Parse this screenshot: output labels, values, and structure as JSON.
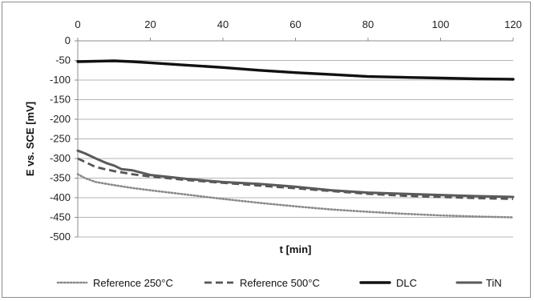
{
  "chart_data": {
    "type": "line",
    "title": "",
    "xlabel": "t [min]",
    "ylabel": "E vs. SCE [mV]",
    "xlim": [
      0,
      120
    ],
    "ylim": [
      -500,
      0
    ],
    "x_ticks": [
      0,
      20,
      40,
      60,
      80,
      100,
      120
    ],
    "y_ticks": [
      0,
      -50,
      -100,
      -150,
      -200,
      -250,
      -300,
      -350,
      -400,
      -450,
      -500
    ],
    "x_tick_labels": [
      "0",
      "20",
      "40",
      "60",
      "80",
      "100",
      "120"
    ],
    "y_tick_labels": [
      "0",
      "-50",
      "-100",
      "-150",
      "-200",
      "-250",
      "-300",
      "-350",
      "-400",
      "-450",
      "-500"
    ],
    "x_axis_position": "top",
    "grid": "horizontal",
    "legend_position": "bottom",
    "series": [
      {
        "name": "Reference 250°C",
        "style": "dotted",
        "color": "#8a8a8a",
        "x": [
          0,
          2,
          5,
          10,
          15,
          20,
          30,
          40,
          50,
          60,
          70,
          80,
          90,
          100,
          110,
          120
        ],
        "y": [
          -340,
          -350,
          -360,
          -368,
          -375,
          -381,
          -392,
          -403,
          -413,
          -422,
          -430,
          -436,
          -441,
          -445,
          -448,
          -450
        ]
      },
      {
        "name": "Reference 500°C",
        "style": "dashed",
        "color": "#555555",
        "x": [
          0,
          5,
          10,
          15,
          20,
          30,
          40,
          50,
          60,
          70,
          80,
          90,
          100,
          110,
          120
        ],
        "y": [
          -300,
          -322,
          -332,
          -340,
          -346,
          -355,
          -362,
          -369,
          -376,
          -383,
          -390,
          -395,
          -398,
          -401,
          -403
        ]
      },
      {
        "name": "DLC",
        "style": "solid",
        "color": "#111111",
        "x": [
          0,
          5,
          10,
          15,
          20,
          30,
          40,
          50,
          60,
          70,
          80,
          90,
          100,
          110,
          120
        ],
        "y": [
          -53,
          -52,
          -51,
          -53,
          -56,
          -62,
          -68,
          -75,
          -81,
          -86,
          -91,
          -93,
          -95,
          -97,
          -98
        ]
      },
      {
        "name": "TiN",
        "style": "solid",
        "color": "#5a5a5a",
        "x": [
          0,
          2,
          5,
          8,
          10,
          12,
          15,
          20,
          25,
          30,
          40,
          50,
          60,
          70,
          80,
          90,
          100,
          110,
          120
        ],
        "y": [
          -280,
          -287,
          -300,
          -312,
          -318,
          -327,
          -330,
          -342,
          -347,
          -352,
          -360,
          -365,
          -372,
          -381,
          -387,
          -390,
          -393,
          -396,
          -398
        ]
      }
    ]
  }
}
